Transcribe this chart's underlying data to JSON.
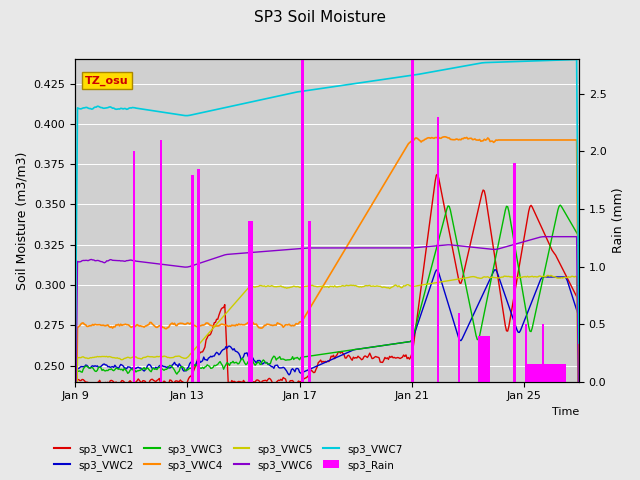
{
  "title": "SP3 Soil Moisture",
  "xlabel": "Time",
  "ylabel_left": "Soil Moisture (m3/m3)",
  "ylabel_right": "Rain (mm)",
  "ylim_left": [
    0.24,
    0.44
  ],
  "ylim_right": [
    0.0,
    2.8
  ],
  "bg_color": "#e8e8e8",
  "plot_bg_color": "#d0d0d0",
  "label_box": "TZ_osu",
  "label_box_color": "#ffdd00",
  "label_box_text_color": "#cc0000",
  "series_colors": {
    "sp3_VWC1": "#dd0000",
    "sp3_VWC2": "#0000cc",
    "sp3_VWC3": "#00bb00",
    "sp3_VWC4": "#ff8800",
    "sp3_VWC5": "#cccc00",
    "sp3_VWC6": "#8800cc",
    "sp3_VWC7": "#00ccdd",
    "sp3_Rain": "#ff00ff"
  },
  "xtick_labels": [
    "Jan 9",
    "Jan 13",
    "Jan 17",
    "Jan 21",
    "Jan 25"
  ],
  "xtick_positions": [
    0,
    96,
    192,
    288,
    384
  ],
  "n_points": 432
}
